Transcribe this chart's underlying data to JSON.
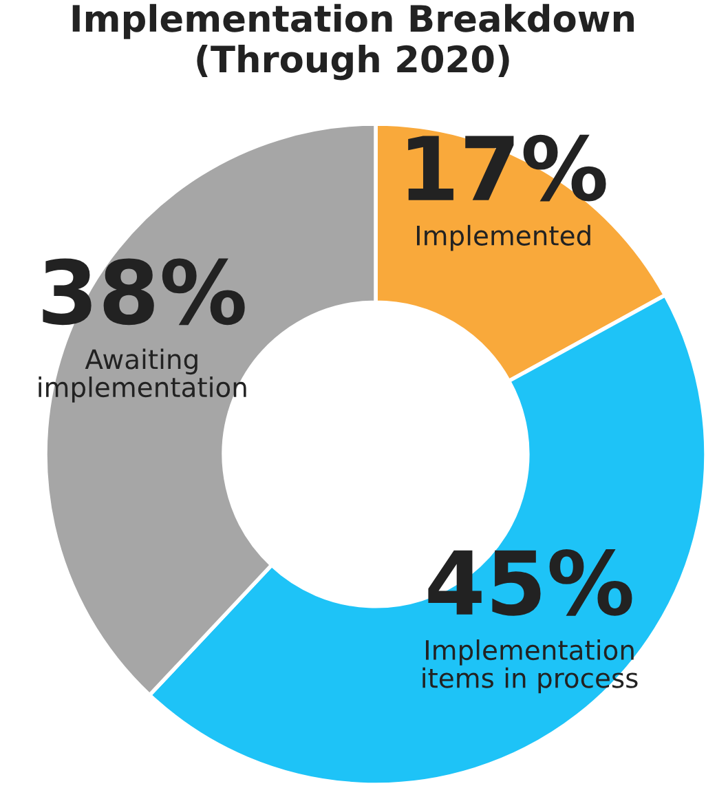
{
  "chart_data": {
    "type": "donut",
    "title": "Implementation Breakdown\n(Through 2020)",
    "categories": [
      "Implemented",
      "Implementation\nitems in process",
      "Awaiting\nimplementation"
    ],
    "values": [
      17,
      45,
      38
    ],
    "colors": [
      "#f9a93b",
      "#1ec3f7",
      "#a6a6a6"
    ],
    "value_labels": [
      "17%",
      "45%",
      "38%"
    ],
    "legend": false
  }
}
